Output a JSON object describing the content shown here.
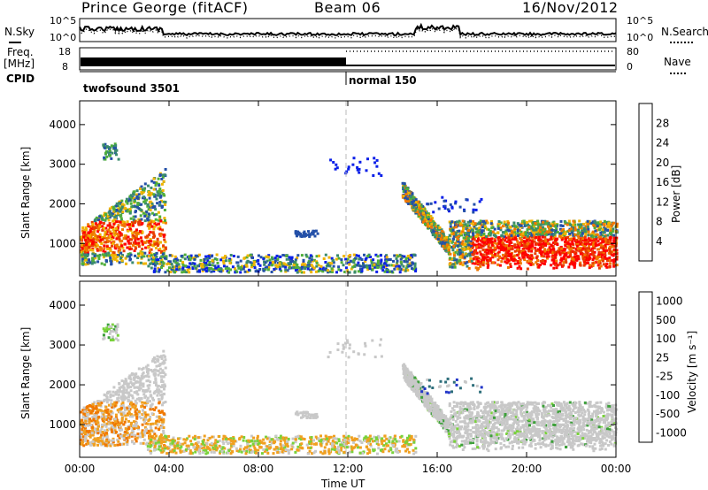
{
  "header": {
    "station": "Prince George (fitACF)",
    "beam": "Beam 06",
    "date": "16/Nov/2012"
  },
  "side_labels": {
    "nsky": "N.Sky",
    "nsearch": "N.Search",
    "freq": "Freq.",
    "freq_unit": "[MHz]",
    "nave": "Nave",
    "cpid": "CPID"
  },
  "noise_axis": {
    "left": [
      "10^5",
      "10^0"
    ],
    "right": [
      "10^5",
      "10^0"
    ]
  },
  "freq_axis": {
    "left": [
      "18",
      "8"
    ],
    "right": [
      "80",
      "0"
    ]
  },
  "cpid_labels": [
    "twofsound 3501",
    "normal 150"
  ],
  "colors": {
    "power": [
      "#0a1fe8",
      "#2450a8",
      "#3b8a6e",
      "#4fae3a",
      "#f0b400",
      "#f07800",
      "#e83c00",
      "#ff0000"
    ],
    "velocity": [
      "#2236c8",
      "#2d6e7a",
      "#3da03a",
      "#79d23a",
      "#c8c8c8",
      "#c8c8c8",
      "#f0a020",
      "#f07800",
      "#f03c00",
      "#ff0000"
    ]
  },
  "chart_data": [
    {
      "type": "heatmap",
      "name": "power-panel",
      "xlabel": "",
      "ylabel": "Slant Range [km]",
      "x_ticks": [
        "00:00",
        "04:00",
        "08:00",
        "12:00",
        "16:00",
        "20:00",
        "00:00"
      ],
      "y_ticks": [
        1000,
        2000,
        3000,
        4000
      ],
      "xlim": [
        0,
        24
      ],
      "ylim": [
        180,
        4600
      ],
      "colorbar": {
        "label": "Power [dB]",
        "ticks": [
          4,
          8,
          12,
          16,
          20,
          24,
          28
        ],
        "range": [
          0,
          32
        ]
      }
    },
    {
      "type": "heatmap",
      "name": "velocity-panel",
      "xlabel": "Time UT",
      "ylabel": "Slant Range [km]",
      "x_ticks": [
        "00:00",
        "04:00",
        "08:00",
        "12:00",
        "16:00",
        "20:00",
        "00:00"
      ],
      "y_ticks": [
        1000,
        2000,
        3000,
        4000
      ],
      "xlim": [
        0,
        24
      ],
      "ylim": [
        180,
        4600
      ],
      "colorbar": {
        "label": "Velocity [m s⁻¹]",
        "ticks": [
          1000,
          500,
          100,
          25,
          -25,
          -100,
          -500,
          -1000
        ]
      }
    }
  ]
}
